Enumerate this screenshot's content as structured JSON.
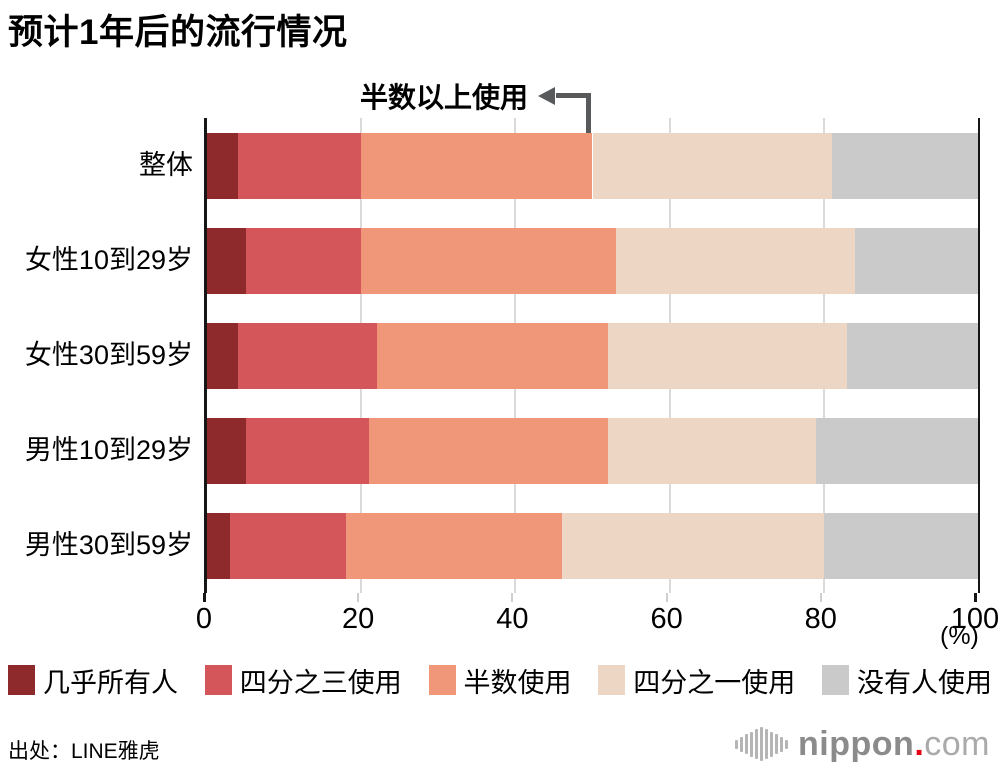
{
  "title": "预计1年后的流行情况",
  "annotation": {
    "label": "半数以上使用",
    "points_to_percent": 50
  },
  "chart_data": {
    "type": "bar",
    "stacked": true,
    "orientation": "horizontal",
    "title": "预计1年后的流行情况",
    "categories": [
      "整体",
      "女性10到29岁",
      "女性30到59岁",
      "男性10到29岁",
      "男性30到59岁"
    ],
    "series": [
      {
        "name": "几乎所有人",
        "color": "#8e2a2b",
        "values": [
          4,
          5,
          4,
          5,
          3
        ]
      },
      {
        "name": "四分之三使用",
        "color": "#d4555a",
        "values": [
          16,
          15,
          18,
          16,
          15
        ]
      },
      {
        "name": "半数使用",
        "color": "#f0977a",
        "values": [
          30,
          33,
          30,
          31,
          28
        ]
      },
      {
        "name": "四分之一使用",
        "color": "#edd6c4",
        "values": [
          31,
          31,
          31,
          27,
          34
        ]
      },
      {
        "name": "没有人使用",
        "color": "#cacaca",
        "values": [
          19,
          16,
          17,
          21,
          20
        ]
      }
    ],
    "xlim": [
      0,
      100
    ],
    "x_ticks": [
      0,
      20,
      40,
      60,
      80,
      100
    ],
    "x_unit": "(%)",
    "grid": true,
    "legend_position": "bottom"
  },
  "source": "出处：LINE雅虎",
  "logo": {
    "name": "nippon",
    "dot": ".",
    "tld": "com"
  }
}
